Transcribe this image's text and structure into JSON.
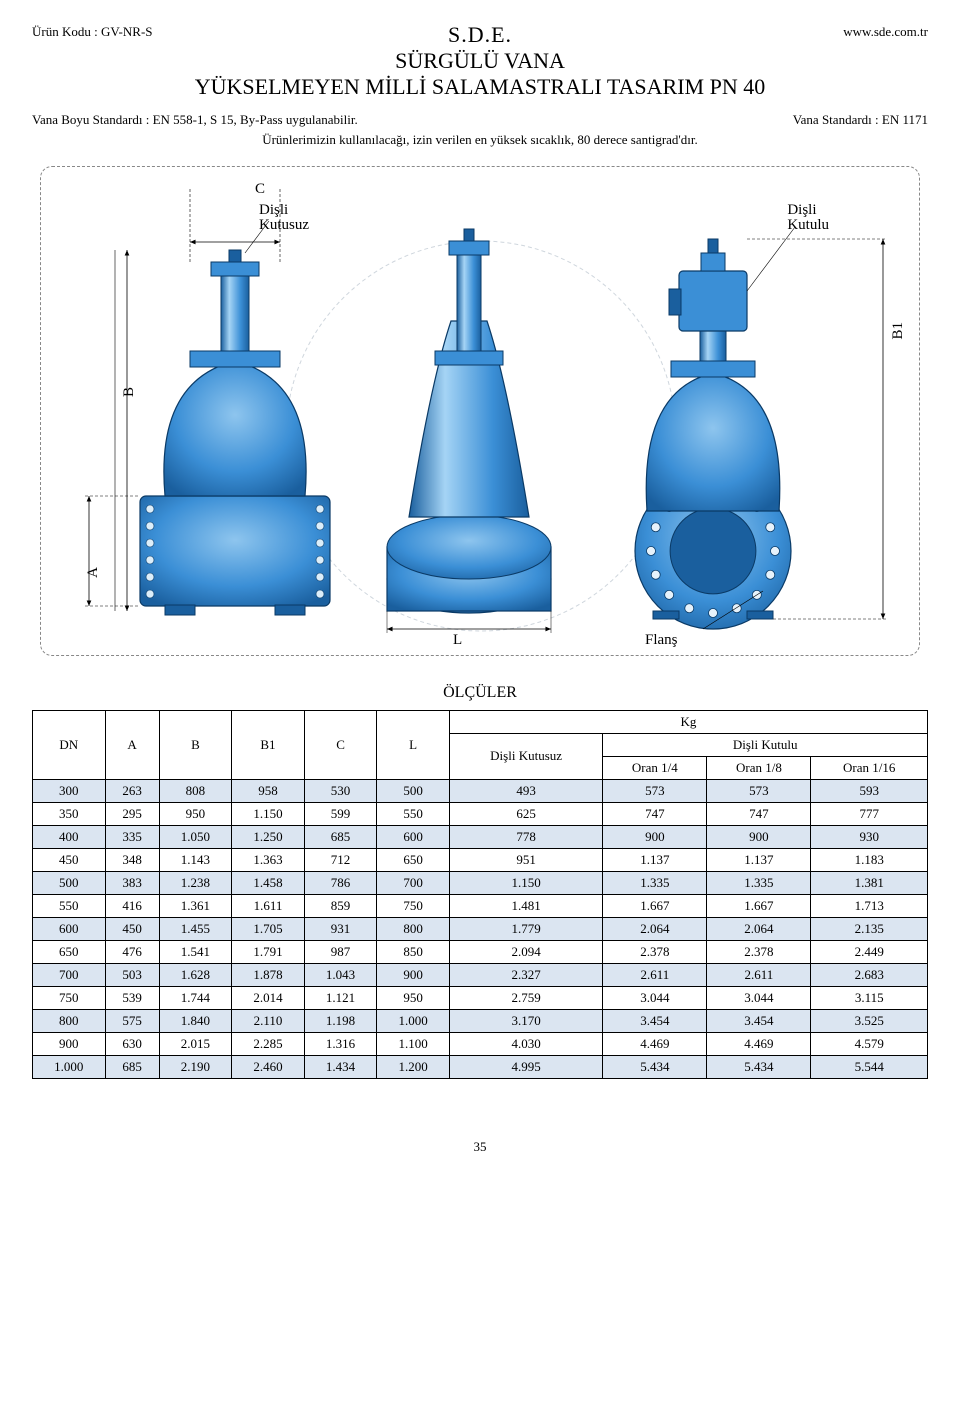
{
  "header": {
    "product_code_label": "Ürün Kodu :",
    "product_code": "GV-NR-S",
    "website": "www.sde.com.tr",
    "brand": "S.D.E.",
    "line1": "SÜRGÜLÜ VANA",
    "line2": "YÜKSELMEYEN MİLLİ  SALAMASTRALI TASARIM    PN 40"
  },
  "meta": {
    "length_std_label": "Vana Boyu Standardı :",
    "length_std": "EN 558-1, S 15, By-Pass uygulanabilir.",
    "valve_std_label": "Vana Standardı :",
    "valve_std": "EN 1171",
    "note": "Ürünlerimizin kullanılacağı, izin verilen en yüksek sıcaklık, 80 derece santigrad'dır."
  },
  "diagram": {
    "labels": {
      "C": "C",
      "B": "B",
      "B1": "B1",
      "A": "A",
      "L": "L",
      "flange": "Flanş",
      "no_gearbox_1": "Dişli",
      "no_gearbox_2": "Kutusuz",
      "gearbox_1": "Dişli",
      "gearbox_2": "Kutulu"
    },
    "colors": {
      "body": "#3b8fd6",
      "body_dark": "#1a5f9e",
      "outline": "#0a3a66",
      "bg": "#ffffff",
      "dim": "#000000"
    }
  },
  "table": {
    "title": "ÖLÇÜLER",
    "kg_label": "Kg",
    "headers": [
      "DN",
      "A",
      "B",
      "B1",
      "C",
      "L"
    ],
    "disli_kutusuz": "Dişli Kutusuz",
    "disli_kutulu": "Dişli Kutulu",
    "sub_headers": [
      "Oran 1/4",
      "Oran 1/8",
      "Oran 1/16"
    ],
    "rows": [
      [
        "300",
        "263",
        "808",
        "958",
        "530",
        "500",
        "493",
        "573",
        "573",
        "593"
      ],
      [
        "350",
        "295",
        "950",
        "1.150",
        "599",
        "550",
        "625",
        "747",
        "747",
        "777"
      ],
      [
        "400",
        "335",
        "1.050",
        "1.250",
        "685",
        "600",
        "778",
        "900",
        "900",
        "930"
      ],
      [
        "450",
        "348",
        "1.143",
        "1.363",
        "712",
        "650",
        "951",
        "1.137",
        "1.137",
        "1.183"
      ],
      [
        "500",
        "383",
        "1.238",
        "1.458",
        "786",
        "700",
        "1.150",
        "1.335",
        "1.335",
        "1.381"
      ],
      [
        "550",
        "416",
        "1.361",
        "1.611",
        "859",
        "750",
        "1.481",
        "1.667",
        "1.667",
        "1.713"
      ],
      [
        "600",
        "450",
        "1.455",
        "1.705",
        "931",
        "800",
        "1.779",
        "2.064",
        "2.064",
        "2.135"
      ],
      [
        "650",
        "476",
        "1.541",
        "1.791",
        "987",
        "850",
        "2.094",
        "2.378",
        "2.378",
        "2.449"
      ],
      [
        "700",
        "503",
        "1.628",
        "1.878",
        "1.043",
        "900",
        "2.327",
        "2.611",
        "2.611",
        "2.683"
      ],
      [
        "750",
        "539",
        "1.744",
        "2.014",
        "1.121",
        "950",
        "2.759",
        "3.044",
        "3.044",
        "3.115"
      ],
      [
        "800",
        "575",
        "1.840",
        "2.110",
        "1.198",
        "1.000",
        "3.170",
        "3.454",
        "3.454",
        "3.525"
      ],
      [
        "900",
        "630",
        "2.015",
        "2.285",
        "1.316",
        "1.100",
        "4.030",
        "4.469",
        "4.469",
        "4.579"
      ],
      [
        "1.000",
        "685",
        "2.190",
        "2.460",
        "1.434",
        "1.200",
        "4.995",
        "5.434",
        "5.434",
        "5.544"
      ]
    ],
    "shade_color": "#dbe5f1"
  },
  "footer": {
    "page": "35"
  }
}
